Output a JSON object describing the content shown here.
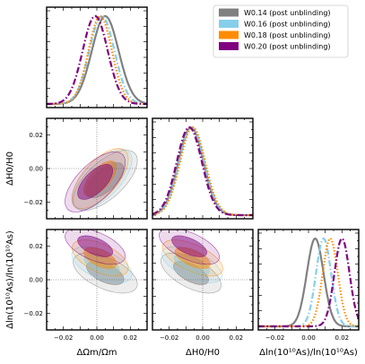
{
  "chart_data": {
    "type": "corner",
    "parameters": [
      "ΔΩm/Ωm",
      "ΔH0/H0",
      "Δln(10^10As)/ln(10^10As)"
    ],
    "axis_labels": {
      "x": [
        "ΔΩ_m/Ω_m",
        "ΔH_0/H_0",
        "Δln(10^{10}A_s)/ln(10^{10}A_s)"
      ],
      "y": [
        "ΔH_0/H_0",
        "Δln(10^{10}A_s)/ln(10^{10}A_s)"
      ]
    },
    "axis_label_display": {
      "x0": "ΔΩm/Ωm",
      "x1": "ΔH0/H0",
      "x2": "Δln(10¹⁰As)/ln(10¹⁰As)",
      "y1": "ΔH0/H0",
      "y2": "Δln(10¹⁰As)/ln(10¹⁰As)"
    },
    "range": [
      -0.03,
      0.03
    ],
    "ticks": [
      -0.02,
      0.0,
      0.02
    ],
    "tick_labels": [
      "−0.02",
      "0.00",
      "0.02"
    ],
    "legend_position": "upper-right",
    "series": [
      {
        "name": "W0.14 (post unblinding)",
        "color": "#808080",
        "linestyle": "solid",
        "mean": [
          0.005,
          -0.007,
          0.004
        ],
        "sigma": [
          0.008,
          0.0075,
          0.005
        ]
      },
      {
        "name": "W0.16 (post unblinding)",
        "color": "#87CEEB",
        "linestyle": "dashdot",
        "mean": [
          0.003,
          -0.0065,
          0.009
        ],
        "sigma": [
          0.0075,
          0.0075,
          0.0045
        ]
      },
      {
        "name": "W0.18 (post unblinding)",
        "color": "#FF8C00",
        "linestyle": "dotted",
        "mean": [
          0.002,
          -0.006,
          0.013
        ],
        "sigma": [
          0.007,
          0.0075,
          0.0045
        ]
      },
      {
        "name": "W0.20 (post unblinding)",
        "color": "#800080",
        "linestyle": "dashdot",
        "mean": [
          -0.001,
          -0.008,
          0.02
        ],
        "sigma": [
          0.0075,
          0.0075,
          0.0045
        ]
      }
    ]
  }
}
